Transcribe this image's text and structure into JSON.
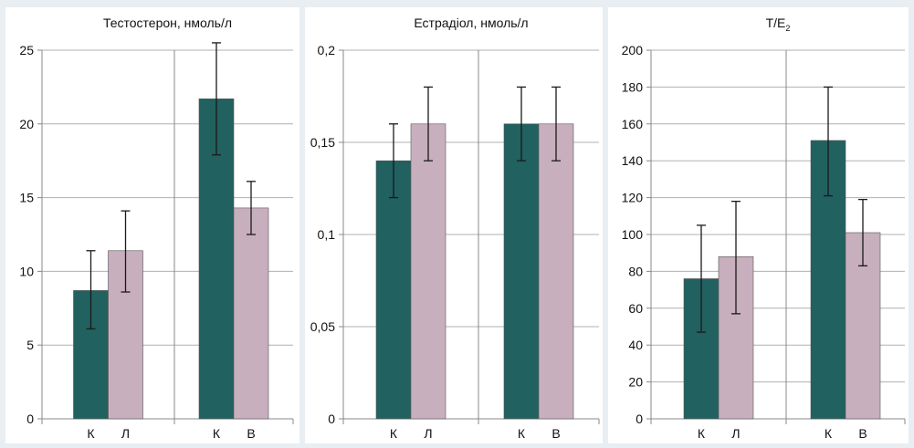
{
  "chart_data": [
    {
      "type": "bar",
      "title": "Тестостерон, нмоль/л",
      "ylim": [
        0,
        25
      ],
      "yticks": [
        0,
        5,
        10,
        15,
        20,
        25
      ],
      "ytick_labels": [
        "0",
        "5",
        "10",
        "15",
        "20",
        "25"
      ],
      "groups": [
        {
          "categories": [
            "К",
            "Л"
          ],
          "values": [
            8.7,
            11.4
          ],
          "errors": [
            [
              6.1,
              11.4
            ],
            [
              8.6,
              14.1
            ]
          ]
        },
        {
          "categories": [
            "К",
            "В"
          ],
          "values": [
            21.7,
            14.3
          ],
          "errors": [
            [
              17.9,
              25.5
            ],
            [
              12.5,
              16.1
            ]
          ]
        }
      ],
      "grid": true
    },
    {
      "type": "bar",
      "title": "Естрадіол, нмоль/л",
      "ylim": [
        0,
        0.2
      ],
      "yticks": [
        0,
        0.05,
        0.1,
        0.15,
        0.2
      ],
      "ytick_labels": [
        "0",
        "0,05",
        "0,1",
        "0,15",
        "0,2"
      ],
      "groups": [
        {
          "categories": [
            "К",
            "Л"
          ],
          "values": [
            0.14,
            0.16
          ],
          "errors": [
            [
              0.12,
              0.16
            ],
            [
              0.14,
              0.18
            ]
          ]
        },
        {
          "categories": [
            "К",
            "В"
          ],
          "values": [
            0.16,
            0.16
          ],
          "errors": [
            [
              0.14,
              0.18
            ],
            [
              0.14,
              0.18
            ]
          ]
        }
      ],
      "grid": true
    },
    {
      "type": "bar",
      "title": "T/E",
      "title_subscript": "2",
      "ylim": [
        0,
        200
      ],
      "yticks": [
        0,
        20,
        40,
        60,
        80,
        100,
        120,
        140,
        160,
        180,
        200
      ],
      "ytick_labels": [
        "0",
        "20",
        "40",
        "60",
        "80",
        "100",
        "120",
        "140",
        "160",
        "180",
        "200"
      ],
      "groups": [
        {
          "categories": [
            "К",
            "Л"
          ],
          "values": [
            76,
            88
          ],
          "errors": [
            [
              47,
              105
            ],
            [
              57,
              118
            ]
          ]
        },
        {
          "categories": [
            "К",
            "В"
          ],
          "values": [
            151,
            101
          ],
          "errors": [
            [
              121,
              180
            ],
            [
              83,
              119
            ]
          ]
        }
      ],
      "grid": true
    }
  ],
  "colors": {
    "series_1": "#21615f",
    "series_2": "#c8afbd",
    "grid": "#b0b0b0",
    "error_bar": "#1a1a1a",
    "background": "#e8eef2"
  }
}
